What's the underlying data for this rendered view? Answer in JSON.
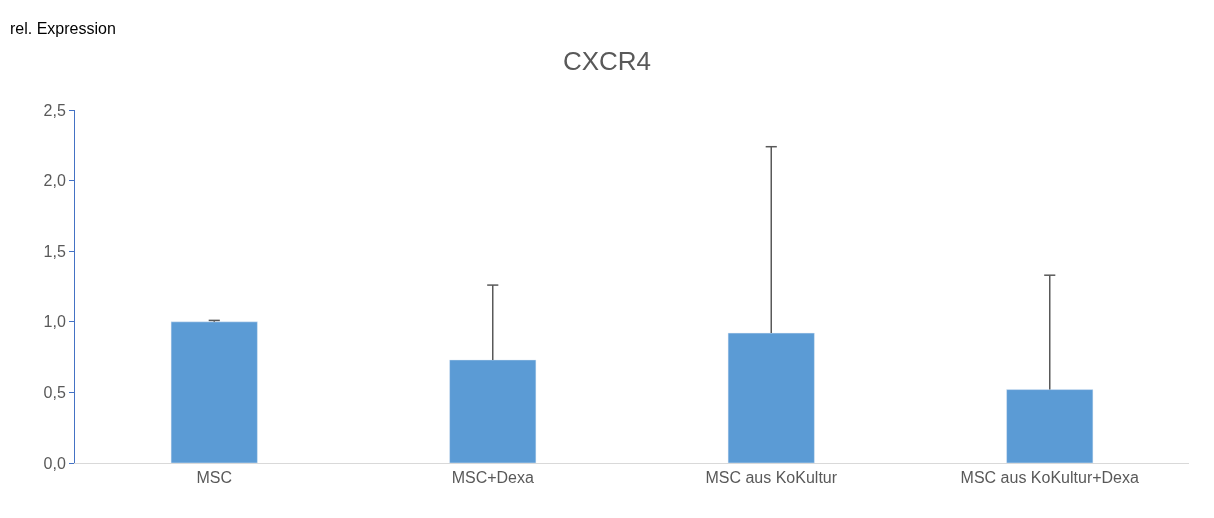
{
  "chart_data": {
    "type": "bar",
    "title": "CXCR4",
    "ylabel": "rel. Expression",
    "categories": [
      "MSC",
      "MSC+Dexa",
      "MSC aus KoKultur",
      "MSC aus KoKultur+Dexa"
    ],
    "values": [
      1.0,
      0.73,
      0.92,
      0.52
    ],
    "errors": [
      [
        1.0,
        1.01
      ],
      [
        0.73,
        1.26
      ],
      [
        0.92,
        2.24
      ],
      [
        0.52,
        1.33
      ]
    ],
    "color": "#5b9bd5",
    "ylim": [
      0,
      2.5
    ],
    "yticks": [
      {
        "value": 0,
        "label": "0,0"
      },
      {
        "value": 0.5,
        "label": "0,5"
      },
      {
        "value": 1,
        "label": "1,0"
      },
      {
        "value": 1.5,
        "label": "1,5"
      },
      {
        "value": 2,
        "label": "2,0"
      },
      {
        "value": 2.5,
        "label": "2,5"
      }
    ],
    "legend": false
  }
}
